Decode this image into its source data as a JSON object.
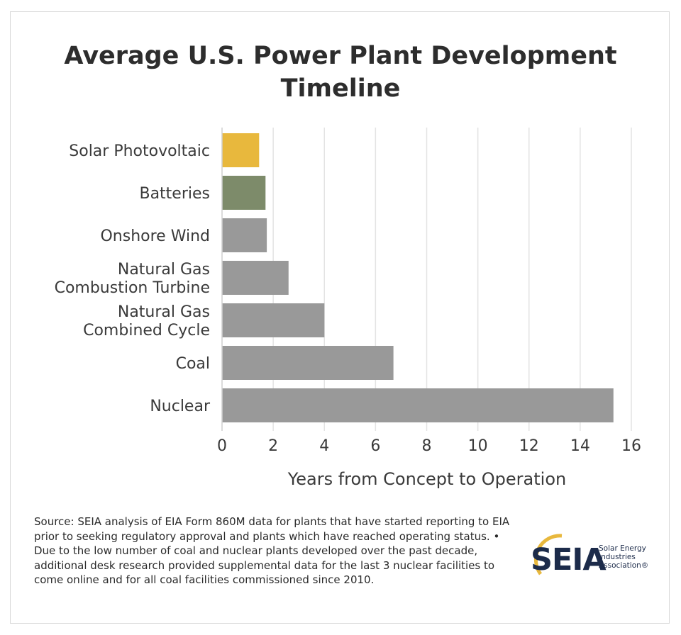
{
  "chart_data": {
    "type": "bar",
    "orientation": "horizontal",
    "title": "Average U.S. Power Plant Development Timeline",
    "categories": [
      "Solar Photovoltaic",
      "Batteries",
      "Onshore Wind",
      "Natural Gas Combustion Turbine",
      "Natural Gas Combined Cycle",
      "Coal",
      "Nuclear"
    ],
    "category_lines": [
      [
        "Solar Photovoltaic"
      ],
      [
        "Batteries"
      ],
      [
        "Onshore Wind"
      ],
      [
        "Natural Gas",
        "Combustion Turbine"
      ],
      [
        "Natural Gas",
        "Combined Cycle"
      ],
      [
        "Coal"
      ],
      [
        "Nuclear"
      ]
    ],
    "values": [
      1.45,
      1.7,
      1.75,
      2.6,
      4.0,
      6.7,
      15.3
    ],
    "bar_colors": [
      "#e8b83d",
      "#7d8b6a",
      "#999999",
      "#999999",
      "#999999",
      "#999999",
      "#999999"
    ],
    "xlabel": "Years from Concept to Operation",
    "xlim": [
      0,
      16
    ],
    "xticks": [
      0,
      2,
      4,
      6,
      8,
      10,
      12,
      14,
      16
    ],
    "grid": true
  },
  "source_text": "Source: SEIA analysis of EIA Form 860M data for plants that have started reporting to EIA prior to seeking regulatory approval and plants which have reached operating status. • Due to the low number of coal and nuclear plants developed over the past decade, additional desk research provided supplemental data for the last 3 nuclear facilities to come online and for all coal facilities commissioned since 2010.",
  "logo": {
    "mark": "SEIA",
    "sub_lines": [
      "Solar Energy",
      "Industries",
      "Association®"
    ],
    "arc_color": "#e8b83d",
    "text_color": "#1c2b4a"
  }
}
